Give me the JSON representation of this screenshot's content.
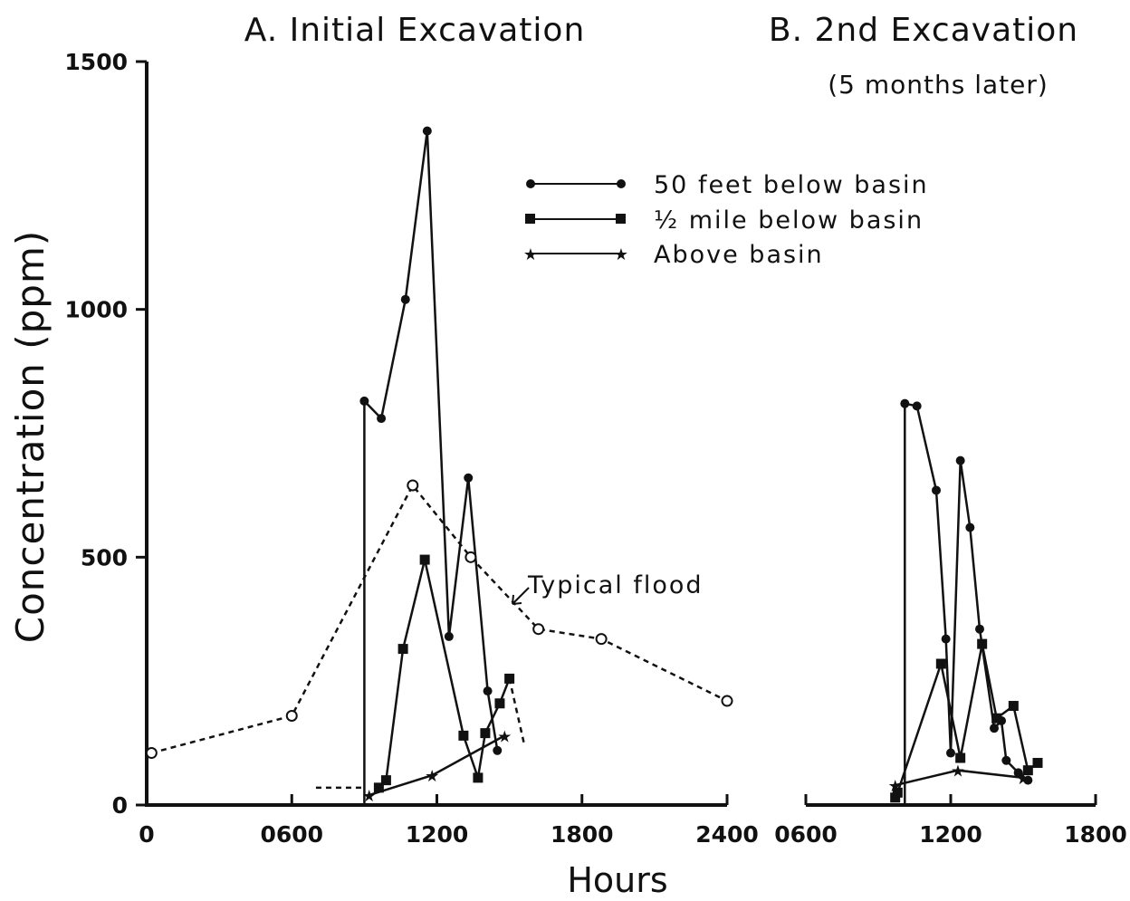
{
  "chart_data": [
    {
      "type": "line",
      "title": "A. Initial Excavation",
      "ylabel": "Concentration (ppm)",
      "xlabel": "Hours",
      "x_tick_labels": [
        "0",
        "0600",
        "1200",
        "1800",
        "2400"
      ],
      "y_ticks": [
        "0",
        "500",
        "1000",
        "1500"
      ],
      "xlim_hours": [
        0,
        24
      ],
      "ylim": [
        0,
        1500
      ],
      "legend_position": "top-right",
      "annotation": "Typical flood",
      "series": [
        {
          "name": "50 feet below basin",
          "marker": "filled-circle",
          "points": [
            [
              9.0,
              0
            ],
            [
              9.0,
              815
            ],
            [
              9.7,
              780
            ],
            [
              10.7,
              1020
            ],
            [
              11.6,
              1360
            ],
            [
              12.5,
              340
            ],
            [
              13.3,
              660
            ],
            [
              14.1,
              230
            ],
            [
              14.5,
              110
            ]
          ]
        },
        {
          "name": "1/2 mile below basin",
          "marker": "filled-square",
          "points": [
            [
              9.6,
              35
            ],
            [
              9.9,
              50
            ],
            [
              10.6,
              315
            ],
            [
              11.5,
              495
            ],
            [
              13.1,
              140
            ],
            [
              13.7,
              55
            ],
            [
              14.0,
              145
            ],
            [
              14.6,
              205
            ],
            [
              15.0,
              255
            ]
          ]
        },
        {
          "name": "Above basin",
          "marker": "star",
          "points": [
            [
              9.2,
              20
            ],
            [
              11.8,
              60
            ],
            [
              14.8,
              140
            ]
          ]
        },
        {
          "name": "Typical flood",
          "marker": "open-circle",
          "dashed": true,
          "points": [
            [
              0.2,
              105
            ],
            [
              6.0,
              180
            ],
            [
              11.0,
              645
            ],
            [
              13.4,
              500
            ],
            [
              16.2,
              355
            ],
            [
              18.8,
              335
            ],
            [
              24.0,
              210
            ]
          ]
        }
      ]
    },
    {
      "type": "line",
      "title": "B. 2nd Excavation",
      "subtitle": "(5 months later)",
      "x_tick_labels": [
        "0600",
        "1200",
        "1800"
      ],
      "xlim_hours": [
        6,
        18
      ],
      "ylim": [
        0,
        1500
      ],
      "series": [
        {
          "name": "50 feet below basin",
          "marker": "filled-circle",
          "points": [
            [
              10.1,
              0
            ],
            [
              10.1,
              810
            ],
            [
              10.6,
              805
            ],
            [
              11.4,
              635
            ],
            [
              11.8,
              335
            ],
            [
              12.0,
              105
            ],
            [
              12.4,
              695
            ],
            [
              12.8,
              560
            ],
            [
              13.2,
              355
            ],
            [
              13.8,
              155
            ],
            [
              14.1,
              170
            ],
            [
              14.3,
              90
            ],
            [
              14.8,
              65
            ],
            [
              15.2,
              50
            ]
          ]
        },
        {
          "name": "1/2 mile below basin",
          "marker": "filled-square",
          "points": [
            [
              9.7,
              15
            ],
            [
              9.8,
              25
            ],
            [
              11.6,
              285
            ],
            [
              12.4,
              95
            ],
            [
              13.3,
              325
            ],
            [
              13.9,
              175
            ],
            [
              14.6,
              200
            ],
            [
              15.2,
              70
            ],
            [
              15.6,
              85
            ]
          ]
        },
        {
          "name": "Above basin",
          "marker": "star",
          "points": [
            [
              9.7,
              40
            ],
            [
              12.3,
              70
            ],
            [
              15.0,
              55
            ]
          ]
        }
      ]
    }
  ],
  "legend": {
    "items": [
      {
        "label": "50 feet below basin",
        "marker": "filled-circle"
      },
      {
        "label": "½ mile below basin",
        "marker": "filled-square"
      },
      {
        "label": "Above basin",
        "marker": "star"
      }
    ]
  }
}
